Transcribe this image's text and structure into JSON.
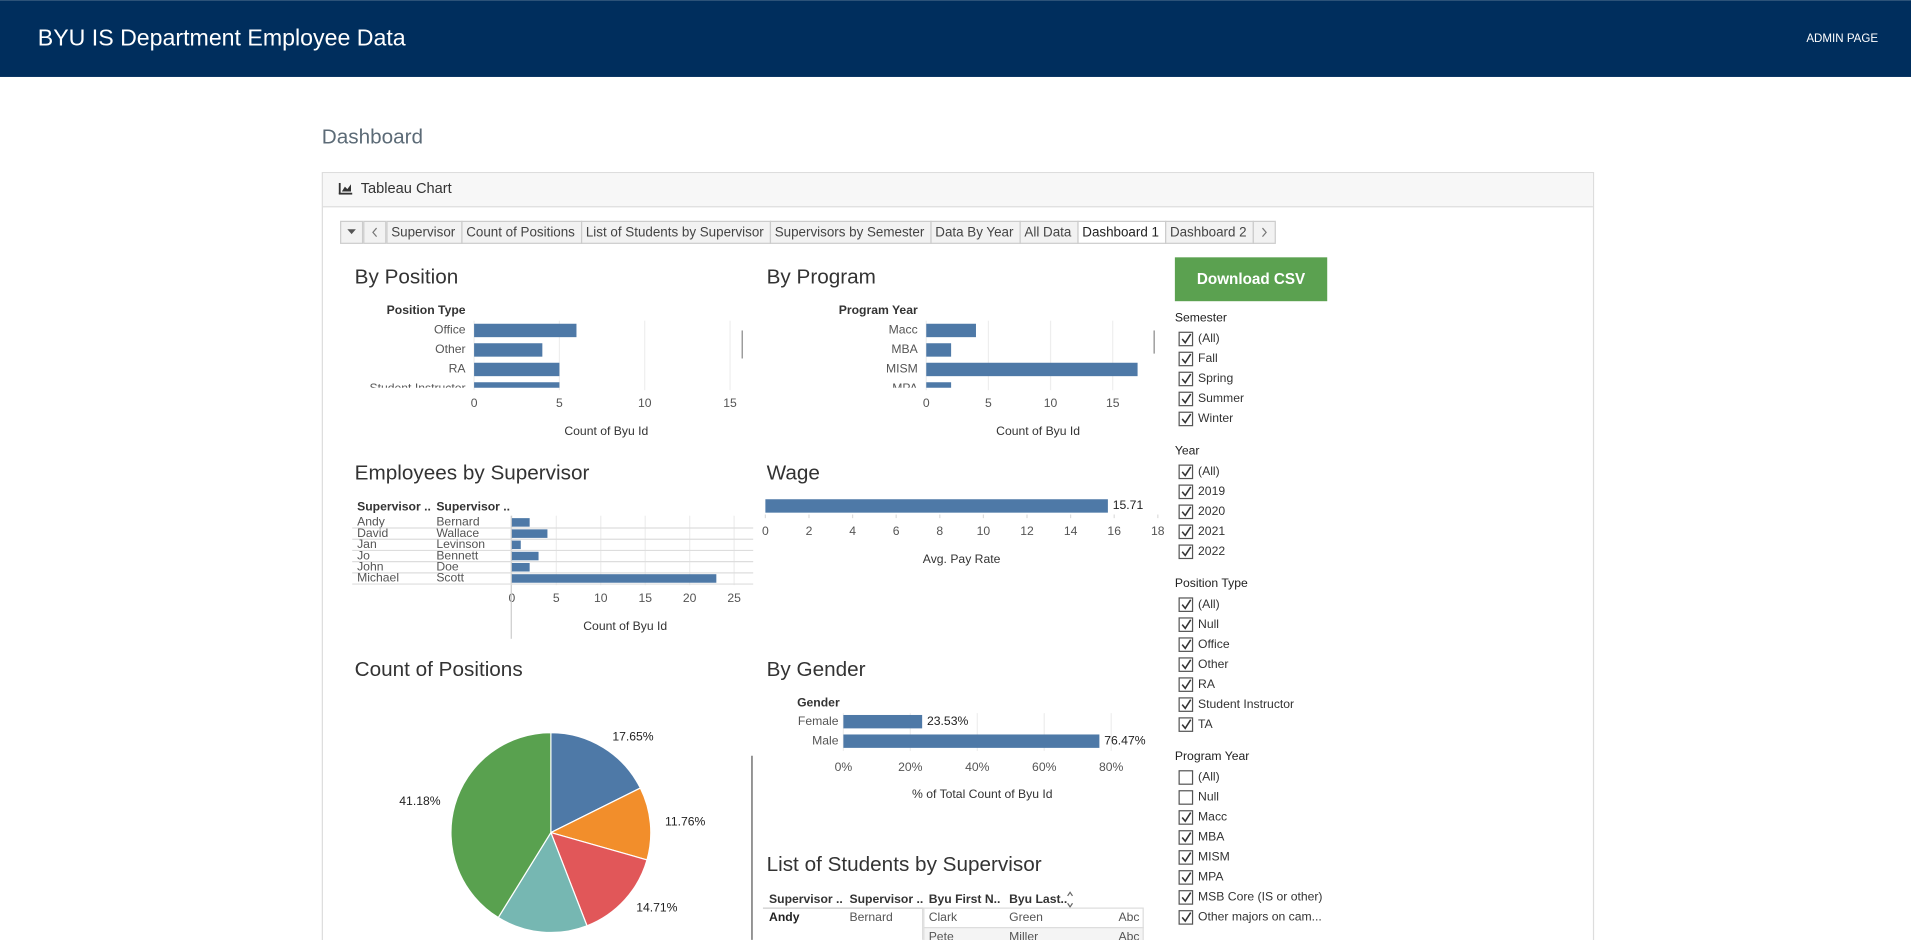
{
  "header": {
    "title": "BYU IS Department Employee Data",
    "link": "ADMIN PAGE"
  },
  "page_title": "Dashboard",
  "panel_title": "Tableau Chart",
  "tabs": {
    "items": [
      "Supervisor",
      "Count of Positions",
      "List of Students by Supervisor",
      "Supervisors by Semester",
      "Data By Year",
      "All Data",
      "Dashboard 1",
      "Dashboard 2"
    ],
    "active": 6
  },
  "download": "Download CSV",
  "chart_data": [
    {
      "type": "hbar",
      "title": "By Position",
      "y_title": "Position Type",
      "categories": [
        "Office",
        "Other",
        "RA",
        "Student Instructor"
      ],
      "values": [
        6,
        4,
        5,
        5
      ],
      "color": "#4e79a7",
      "xlim": [
        0,
        15.5
      ],
      "xticks": [
        0,
        5,
        10,
        15
      ],
      "x_label": "Count of Byu Id",
      "grid": true
    },
    {
      "type": "hbar",
      "title": "By Program",
      "y_title": "Program Year",
      "categories": [
        "Macc",
        "MBA",
        "MISM",
        "MPA"
      ],
      "values": [
        4,
        2,
        17,
        2
      ],
      "color": "#4e79a7",
      "xlim": [
        0,
        18
      ],
      "xticks": [
        0,
        5,
        10,
        15
      ],
      "x_label": "Count of Byu Id",
      "grid": true
    },
    {
      "type": "hbar",
      "title": "Employees by Supervisor",
      "row_headers": [
        "Supervisor ..",
        "Supervisor .."
      ],
      "categories": [
        [
          "Andy",
          "Bernard"
        ],
        [
          "David",
          "Wallace"
        ],
        [
          "Jan",
          "Levinson"
        ],
        [
          "Jo",
          "Bennett"
        ],
        [
          "John",
          "Doe"
        ],
        [
          "Michael",
          "Scott"
        ]
      ],
      "values": [
        2,
        4,
        1,
        3,
        2,
        23
      ],
      "color": "#4e79a7",
      "xlim": [
        0,
        25.5
      ],
      "xticks": [
        0,
        5,
        10,
        15,
        20,
        25
      ],
      "x_label": "Count of Byu Id",
      "grid": true
    },
    {
      "type": "hbar",
      "title": "Wage",
      "values": [
        15.71
      ],
      "show_values": true,
      "color": "#4e79a7",
      "xlim": [
        0,
        18
      ],
      "xticks": [
        0,
        2,
        4,
        6,
        8,
        10,
        12,
        14,
        16,
        18
      ],
      "x_label": "Avg. Pay Rate",
      "grid": false
    },
    {
      "type": "pie",
      "title": "Count of Positions",
      "values": [
        17.65,
        11.76,
        14.71,
        14.71,
        41.18
      ],
      "value_labels": [
        "17.65%",
        "11.76%",
        "14.71%",
        null,
        "41.18%"
      ],
      "colors": [
        "#4e79a7",
        "#f28e2b",
        "#e15759",
        "#76b7b2",
        "#59a14f"
      ]
    },
    {
      "type": "hbar",
      "title": "By Gender",
      "y_title": "Gender",
      "categories": [
        "Female",
        "Male"
      ],
      "values": [
        23.53,
        76.47
      ],
      "value_labels": [
        "23.53%",
        "76.47%"
      ],
      "color": "#4e79a7",
      "xlim": [
        0,
        83
      ],
      "xticks": [
        {
          "value": 0,
          "label": "0%"
        },
        {
          "value": 20,
          "label": "20%"
        },
        {
          "value": 40,
          "label": "40%"
        },
        {
          "value": 60,
          "label": "60%"
        },
        {
          "value": 80,
          "label": "80%"
        }
      ],
      "x_label": "% of Total Count of Byu Id",
      "grid": true
    }
  ],
  "student_table": {
    "title": "List of Students by Supervisor",
    "headers": [
      "Supervisor ..",
      "Supervisor ..",
      "Byu First N..",
      "Byu Last.."
    ],
    "rows": [
      [
        "Andy",
        "Bernard",
        "Clark",
        "Green",
        "Abc"
      ],
      [
        null,
        null,
        "Pete",
        "Miller",
        "Abc"
      ]
    ]
  },
  "filters": [
    {
      "title": "Semester",
      "items": [
        {
          "label": "(All)",
          "checked": true
        },
        {
          "label": "Fall",
          "checked": true
        },
        {
          "label": "Spring",
          "checked": true
        },
        {
          "label": "Summer",
          "checked": true
        },
        {
          "label": "Winter",
          "checked": true
        }
      ]
    },
    {
      "title": "Year",
      "items": [
        {
          "label": "(All)",
          "checked": true
        },
        {
          "label": "2019",
          "checked": true
        },
        {
          "label": "2020",
          "checked": true
        },
        {
          "label": "2021",
          "checked": true
        },
        {
          "label": "2022",
          "checked": true
        }
      ]
    },
    {
      "title": "Position Type",
      "items": [
        {
          "label": "(All)",
          "checked": true
        },
        {
          "label": "Null",
          "checked": true
        },
        {
          "label": "Office",
          "checked": true
        },
        {
          "label": "Other",
          "checked": true
        },
        {
          "label": "RA",
          "checked": true
        },
        {
          "label": "Student Instructor",
          "checked": true
        },
        {
          "label": "TA",
          "checked": true
        }
      ]
    },
    {
      "title": "Program Year",
      "items": [
        {
          "label": "(All)",
          "checked": false
        },
        {
          "label": "Null",
          "checked": false
        },
        {
          "label": "Macc",
          "checked": true
        },
        {
          "label": "MBA",
          "checked": true
        },
        {
          "label": "MISM",
          "checked": true
        },
        {
          "label": "MPA",
          "checked": true
        },
        {
          "label": "MSB Core (IS or other)",
          "checked": true
        },
        {
          "label": "Other majors on cam...",
          "checked": true
        }
      ]
    }
  ]
}
